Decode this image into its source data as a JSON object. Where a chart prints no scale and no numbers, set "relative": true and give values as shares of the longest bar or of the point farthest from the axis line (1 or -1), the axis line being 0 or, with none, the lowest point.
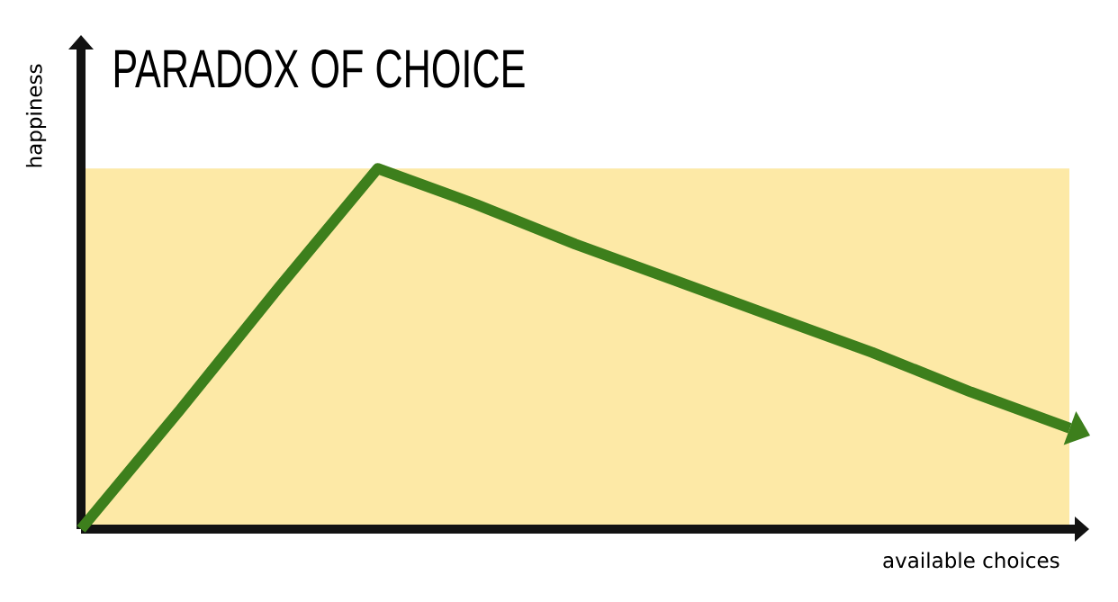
{
  "chart_data": {
    "type": "line",
    "title": "PARADOX OF CHOICE",
    "xlabel": "available choices",
    "ylabel": "happiness",
    "relative": true,
    "categories": [
      null,
      null,
      null,
      null,
      null,
      null,
      null,
      null,
      null,
      null,
      null
    ],
    "series": [
      {
        "color": "#3d7f1c",
        "values": [
          0,
          0.33,
          0.67,
          1,
          0.9,
          0.79,
          0.69,
          0.59,
          0.49,
          0.38,
          0.28
        ]
      }
    ]
  }
}
